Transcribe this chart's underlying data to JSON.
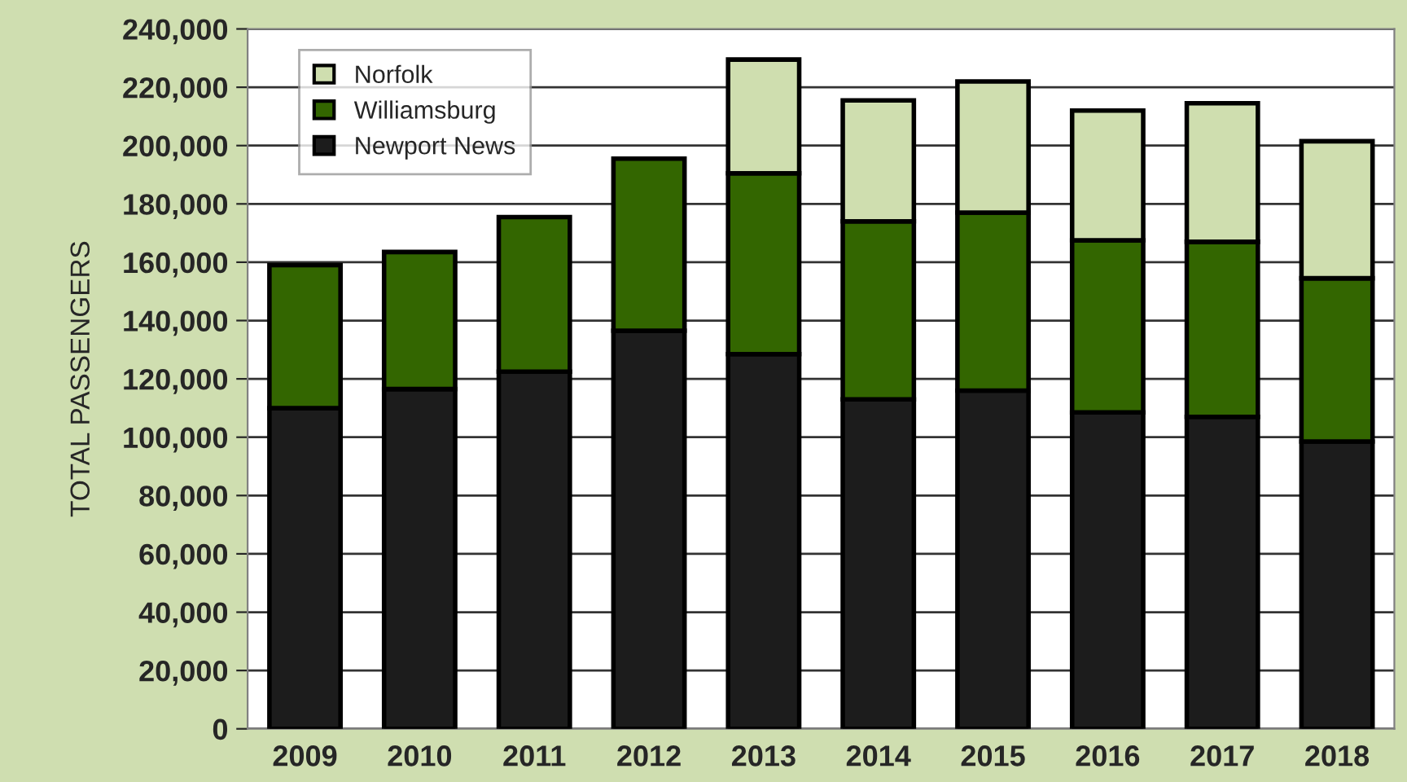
{
  "chart_data": {
    "type": "bar",
    "stacked": true,
    "ylabel": "TOTAL PASSENGERS",
    "categories": [
      "2009",
      "2010",
      "2011",
      "2012",
      "2013",
      "2014",
      "2015",
      "2016",
      "2017",
      "2018"
    ],
    "series": [
      {
        "name": "Newport News",
        "color": "#1c1c1c",
        "values": [
          110000,
          116500,
          122500,
          136500,
          128500,
          113000,
          116000,
          108500,
          107000,
          98500
        ]
      },
      {
        "name": "Williamsburg",
        "color": "#336600",
        "values": [
          49000,
          47000,
          53000,
          59000,
          62000,
          61000,
          61000,
          59000,
          60000,
          56000
        ]
      },
      {
        "name": "Norfolk",
        "color": "#cfdeaf",
        "values": [
          null,
          null,
          null,
          null,
          39000,
          41500,
          45000,
          44500,
          47500,
          47000
        ]
      }
    ],
    "ylim": [
      0,
      240000
    ],
    "yticks": [
      {
        "value": 0,
        "label": "0"
      },
      {
        "value": 20000,
        "label": "20,000"
      },
      {
        "value": 40000,
        "label": "40,000"
      },
      {
        "value": 60000,
        "label": "60,000"
      },
      {
        "value": 80000,
        "label": "80,000"
      },
      {
        "value": 100000,
        "label": "100,000"
      },
      {
        "value": 120000,
        "label": "120,000"
      },
      {
        "value": 140000,
        "label": "140,000"
      },
      {
        "value": 160000,
        "label": "160,000"
      },
      {
        "value": 180000,
        "label": "180,000"
      },
      {
        "value": 200000,
        "label": "200,000"
      },
      {
        "value": 220000,
        "label": "220,000"
      },
      {
        "value": 240000,
        "label": "240,000"
      }
    ],
    "grid": "y",
    "legend": "top left"
  }
}
